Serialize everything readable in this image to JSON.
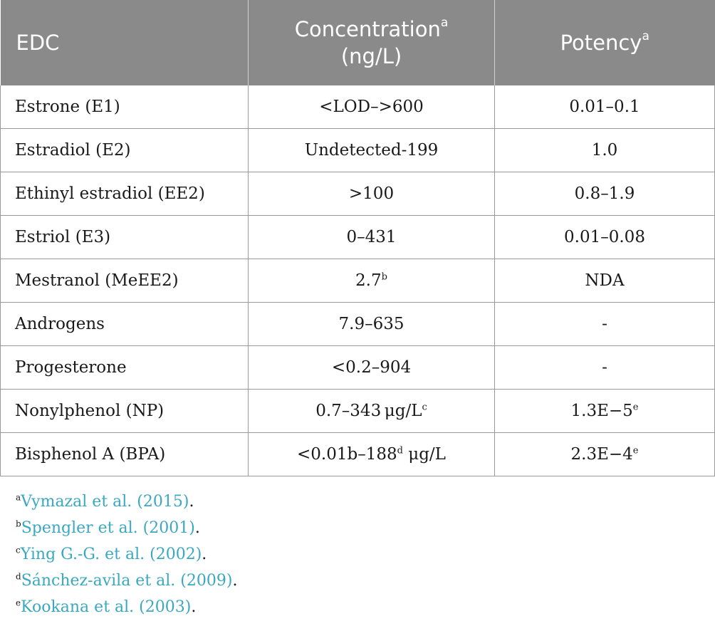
{
  "table": {
    "headers": {
      "edc": "EDC",
      "concentration": "Concentration",
      "concentration_sup": "a",
      "concentration_unit": "(ng/L)",
      "potency": "Potency",
      "potency_sup": "a"
    },
    "rows": [
      {
        "edc": "Estrone (E1)",
        "conc": "<LOD–>600",
        "conc_sup": "",
        "conc_suffix": "",
        "pot": "0.01–0.1",
        "pot_sup": ""
      },
      {
        "edc": "Estradiol (E2)",
        "conc": "Undetected-199",
        "conc_sup": "",
        "conc_suffix": "",
        "pot": "1.0",
        "pot_sup": ""
      },
      {
        "edc": "Ethinyl estradiol (EE2)",
        "conc": ">100",
        "conc_sup": "",
        "conc_suffix": "",
        "pot": "0.8–1.9",
        "pot_sup": ""
      },
      {
        "edc": "Estriol (E3)",
        "conc": "0–431",
        "conc_sup": "",
        "conc_suffix": "",
        "pot": "0.01–0.08",
        "pot_sup": ""
      },
      {
        "edc": "Mestranol (MeEE2)",
        "conc": "2.7",
        "conc_sup": "b",
        "conc_suffix": "",
        "pot": "NDA",
        "pot_sup": ""
      },
      {
        "edc": "Androgens",
        "conc": "7.9–635",
        "conc_sup": "",
        "conc_suffix": "",
        "pot": "-",
        "pot_sup": ""
      },
      {
        "edc": "Progesterone",
        "conc": "<0.2–904",
        "conc_sup": "",
        "conc_suffix": "",
        "pot": "-",
        "pot_sup": ""
      },
      {
        "edc": "Nonylphenol (NP)",
        "conc": "0.7–343 μg/L",
        "conc_sup": "c",
        "conc_suffix": "",
        "pot": "1.3E−5",
        "pot_sup": "e"
      },
      {
        "edc": "Bisphenol A (BPA)",
        "conc": "<0.01b–188",
        "conc_sup": "d",
        "conc_suffix": " μg/L",
        "pot": "2.3E−4",
        "pot_sup": "e"
      }
    ]
  },
  "footnotes": [
    {
      "mark": "a",
      "ref": "Vymazal et al. (2015)",
      "end": "."
    },
    {
      "mark": "b",
      "ref": "Spengler et al. (2001)",
      "end": "."
    },
    {
      "mark": "c",
      "ref": "Ying G.-G. et al. (2002)",
      "end": "."
    },
    {
      "mark": "d",
      "ref": "Sánchez-avila et al. (2009)",
      "end": "."
    },
    {
      "mark": "e",
      "ref": "Kookana et al. (2003)",
      "end": "."
    }
  ],
  "colors": {
    "header_bg": "#8a8a8a",
    "header_text": "#ffffff",
    "link": "#3aa8c1",
    "border": "#9a9a9a"
  }
}
